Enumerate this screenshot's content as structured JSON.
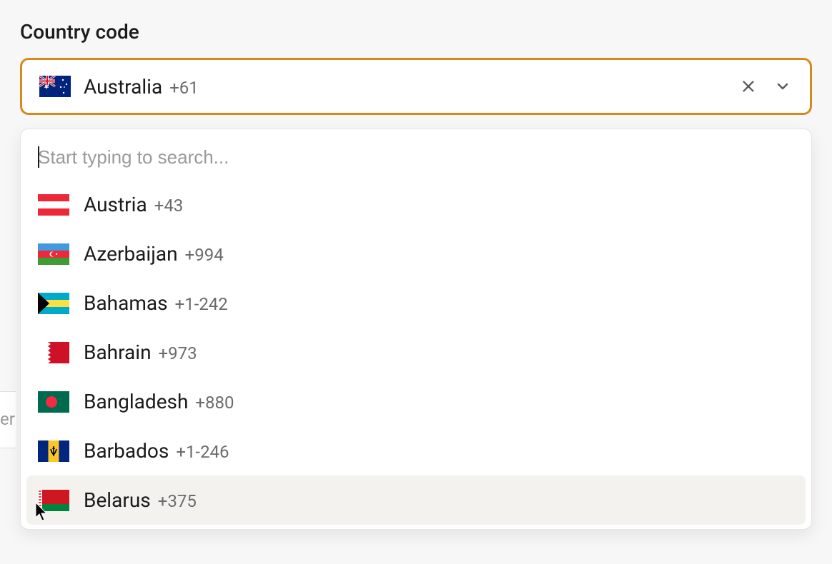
{
  "label": "Country code",
  "selected": {
    "country": "Australia",
    "code": "+61",
    "flag_id": "au"
  },
  "search": {
    "placeholder": "Start typing to search...",
    "value": ""
  },
  "options": [
    {
      "country": "Austria",
      "code": "+43",
      "flag_id": "at",
      "hovered": false
    },
    {
      "country": "Azerbaijan",
      "code": "+994",
      "flag_id": "az",
      "hovered": false
    },
    {
      "country": "Bahamas",
      "code": "+1-242",
      "flag_id": "bs",
      "hovered": false
    },
    {
      "country": "Bahrain",
      "code": "+973",
      "flag_id": "bh",
      "hovered": false
    },
    {
      "country": "Bangladesh",
      "code": "+880",
      "flag_id": "bd",
      "hovered": false
    },
    {
      "country": "Barbados",
      "code": "+1-246",
      "flag_id": "bb",
      "hovered": false
    },
    {
      "country": "Belarus",
      "code": "+375",
      "flag_id": "by",
      "hovered": true
    }
  ],
  "colors": {
    "focus_border": "#d68a1c",
    "text_primary": "#1a1a1a",
    "text_secondary": "#6b6b6b",
    "placeholder": "#9a9a9a",
    "hover_bg": "#f4f2ef",
    "page_bg": "#f7f7f7",
    "dropdown_bg": "#ffffff",
    "border": "#e5e5e5"
  },
  "flags": {
    "au": {
      "bg": "#00247d"
    },
    "at": {
      "stripes": [
        "#ed2939",
        "#ffffff",
        "#ed2939"
      ],
      "dir": "h"
    },
    "az": {
      "stripes": [
        "#3f9ae0",
        "#ed2939",
        "#3f9c35"
      ],
      "dir": "h",
      "emblem": "az"
    },
    "bs": {
      "stripes": [
        "#00abc9",
        "#fae042",
        "#00abc9"
      ],
      "dir": "h",
      "triangle": "#000000"
    },
    "bh": {
      "bg": "#ce1126",
      "left": "#ffffff"
    },
    "bd": {
      "bg": "#006a4e",
      "disc": "#f42a41"
    },
    "bb": {
      "stripes": [
        "#00267f",
        "#ffc726",
        "#00267f"
      ],
      "dir": "v",
      "emblem": "bb"
    },
    "by": {
      "stripes": [
        "#ce1720",
        "#ce1720",
        "#00843d"
      ],
      "dir": "h",
      "left_pattern": true
    }
  }
}
